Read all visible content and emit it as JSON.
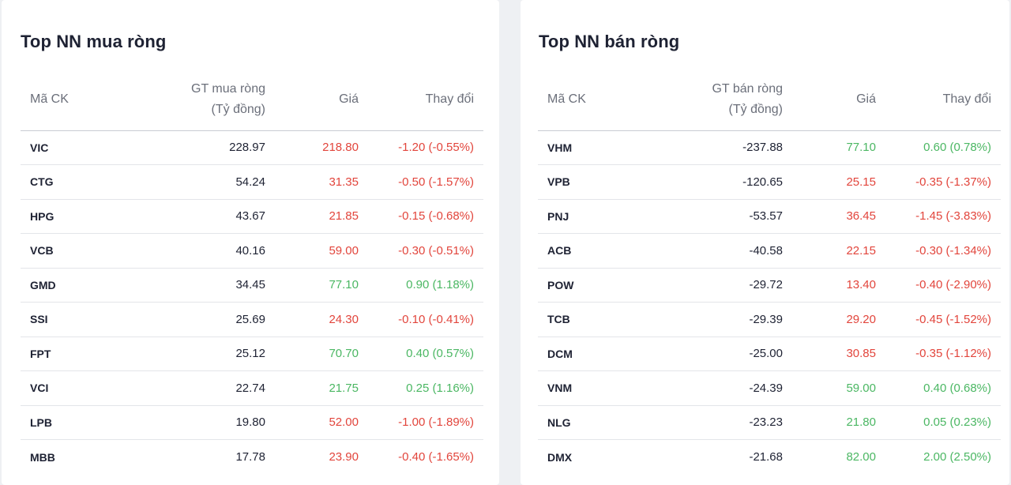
{
  "colors": {
    "up": "#4bb763",
    "down": "#e2453c"
  },
  "buy": {
    "title": "Top NN mua ròng",
    "headers": {
      "symbol": "Mã CK",
      "value_line1": "GT mua ròng",
      "value_line2": "(Tỷ đồng)",
      "price": "Giá",
      "change": "Thay đổi"
    },
    "rows": [
      {
        "symbol": "VIC",
        "value": "228.97",
        "price": "218.80",
        "change": "-1.20 (-0.55%)",
        "dir": "down"
      },
      {
        "symbol": "CTG",
        "value": "54.24",
        "price": "31.35",
        "change": "-0.50 (-1.57%)",
        "dir": "down"
      },
      {
        "symbol": "HPG",
        "value": "43.67",
        "price": "21.85",
        "change": "-0.15 (-0.68%)",
        "dir": "down"
      },
      {
        "symbol": "VCB",
        "value": "40.16",
        "price": "59.00",
        "change": "-0.30 (-0.51%)",
        "dir": "down"
      },
      {
        "symbol": "GMD",
        "value": "34.45",
        "price": "77.10",
        "change": "0.90 (1.18%)",
        "dir": "up"
      },
      {
        "symbol": "SSI",
        "value": "25.69",
        "price": "24.30",
        "change": "-0.10 (-0.41%)",
        "dir": "down"
      },
      {
        "symbol": "FPT",
        "value": "25.12",
        "price": "70.70",
        "change": "0.40 (0.57%)",
        "dir": "up"
      },
      {
        "symbol": "VCI",
        "value": "22.74",
        "price": "21.75",
        "change": "0.25 (1.16%)",
        "dir": "up"
      },
      {
        "symbol": "LPB",
        "value": "19.80",
        "price": "52.00",
        "change": "-1.00 (-1.89%)",
        "dir": "down"
      },
      {
        "symbol": "MBB",
        "value": "17.78",
        "price": "23.90",
        "change": "-0.40 (-1.65%)",
        "dir": "down"
      }
    ]
  },
  "sell": {
    "title": "Top NN bán ròng",
    "headers": {
      "symbol": "Mã CK",
      "value_line1": "GT bán ròng",
      "value_line2": "(Tỷ đồng)",
      "price": "Giá",
      "change": "Thay đổi"
    },
    "rows": [
      {
        "symbol": "VHM",
        "value": "-237.88",
        "price": "77.10",
        "change": "0.60 (0.78%)",
        "dir": "up"
      },
      {
        "symbol": "VPB",
        "value": "-120.65",
        "price": "25.15",
        "change": "-0.35 (-1.37%)",
        "dir": "down"
      },
      {
        "symbol": "PNJ",
        "value": "-53.57",
        "price": "36.45",
        "change": "-1.45 (-3.83%)",
        "dir": "down"
      },
      {
        "symbol": "ACB",
        "value": "-40.58",
        "price": "22.15",
        "change": "-0.30 (-1.34%)",
        "dir": "down"
      },
      {
        "symbol": "POW",
        "value": "-29.72",
        "price": "13.40",
        "change": "-0.40 (-2.90%)",
        "dir": "down"
      },
      {
        "symbol": "TCB",
        "value": "-29.39",
        "price": "29.20",
        "change": "-0.45 (-1.52%)",
        "dir": "down"
      },
      {
        "symbol": "DCM",
        "value": "-25.00",
        "price": "30.85",
        "change": "-0.35 (-1.12%)",
        "dir": "down"
      },
      {
        "symbol": "VNM",
        "value": "-24.39",
        "price": "59.00",
        "change": "0.40 (0.68%)",
        "dir": "up"
      },
      {
        "symbol": "NLG",
        "value": "-23.23",
        "price": "21.80",
        "change": "0.05 (0.23%)",
        "dir": "up"
      },
      {
        "symbol": "DMX",
        "value": "-21.68",
        "price": "82.00",
        "change": "2.00 (2.50%)",
        "dir": "up"
      }
    ]
  }
}
